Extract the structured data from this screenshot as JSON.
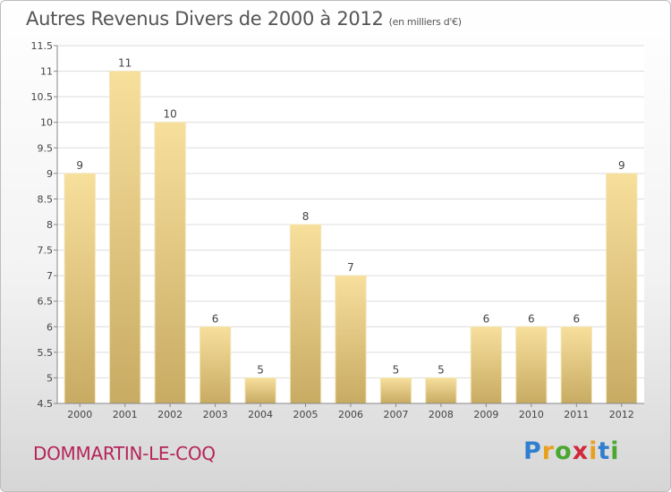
{
  "header": {
    "title": "Autres Revenus Divers de 2000 à 2012",
    "subtitle": "(en milliers d'€)"
  },
  "footer": {
    "city": "DOMMARTIN-LE-COQ",
    "logo_letters": [
      "P",
      "r",
      "o",
      "x",
      "i",
      "t",
      "i"
    ],
    "logo_colors": [
      "#2f7fd0",
      "#e8a020",
      "#4aa832",
      "#d0283c",
      "#e8a020",
      "#2f7fd0",
      "#4aa832"
    ]
  },
  "colors": {
    "bar_light": "#f7df9c",
    "bar_dark": "#c8ab63",
    "grid": "#dcdcdc",
    "axis": "#888888"
  },
  "chart_data": {
    "type": "bar",
    "title": "Autres Revenus Divers de 2000 à 2012",
    "subtitle": "(en milliers d'€)",
    "categories": [
      "2000",
      "2001",
      "2002",
      "2003",
      "2004",
      "2005",
      "2006",
      "2007",
      "2008",
      "2009",
      "2010",
      "2011",
      "2012"
    ],
    "values": [
      9,
      11,
      10,
      6,
      5,
      8,
      7,
      5,
      5,
      6,
      6,
      6,
      9
    ],
    "ylim": [
      4.5,
      11.5
    ],
    "yticks": [
      "4.5",
      "5",
      "5.5",
      "6",
      "6.5",
      "7",
      "7.5",
      "8",
      "8.5",
      "9",
      "9.5",
      "10",
      "10.5",
      "11",
      "11.5"
    ],
    "grid": true,
    "legend": "none"
  }
}
